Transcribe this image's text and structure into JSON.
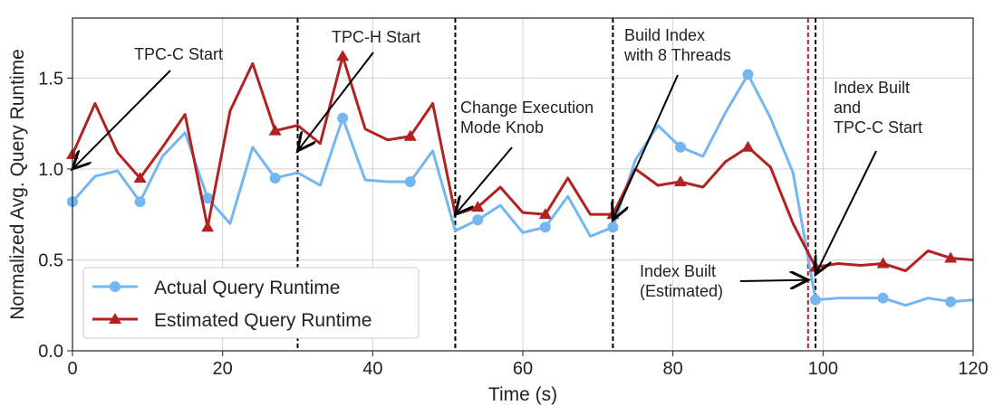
{
  "chart_data": {
    "type": "line",
    "title": "",
    "xlabel": "Time (s)",
    "ylabel": "Normalized Avg. Query Runtime",
    "xlim": [
      0,
      120
    ],
    "ylim": [
      0,
      1.83
    ],
    "xticks": [
      0,
      20,
      40,
      60,
      80,
      100,
      120
    ],
    "yticks": [
      "0.0",
      "0.5",
      "1.0",
      "1.5"
    ],
    "ytick_values": [
      0,
      0.5,
      1.0,
      1.5
    ],
    "grid": true,
    "legend_position": "bottom-left",
    "x": [
      0,
      3,
      6,
      9,
      12,
      15,
      18,
      21,
      24,
      27,
      30,
      33,
      36,
      39,
      42,
      45,
      48,
      51,
      54,
      57,
      60,
      63,
      66,
      69,
      72,
      75,
      78,
      81,
      84,
      87,
      90,
      93,
      96,
      99,
      102,
      105,
      108,
      111,
      114,
      117,
      120
    ],
    "series": [
      {
        "name": "Actual Query Runtime",
        "color": "#74b6f2",
        "marker": "circle",
        "marker_x": [
          0,
          9,
          18,
          27,
          36,
          45,
          54,
          63,
          72,
          81,
          90,
          99,
          108,
          117
        ],
        "values": [
          0.82,
          0.96,
          0.99,
          0.82,
          1.07,
          1.2,
          0.84,
          0.7,
          1.12,
          0.95,
          0.98,
          0.91,
          1.28,
          0.94,
          0.93,
          0.93,
          1.1,
          0.66,
          0.72,
          0.8,
          0.65,
          0.68,
          0.85,
          0.63,
          0.68,
          1.05,
          1.24,
          1.12,
          1.07,
          1.31,
          1.52,
          1.28,
          0.98,
          0.28,
          0.29,
          0.29,
          0.29,
          0.25,
          0.29,
          0.27,
          0.28
        ]
      },
      {
        "name": "Estimated Query Runtime",
        "color": "#b22222",
        "marker": "triangle",
        "marker_x": [
          0,
          9,
          18,
          27,
          36,
          45,
          54,
          63,
          72,
          81,
          90,
          99,
          108,
          117
        ],
        "values": [
          1.08,
          1.36,
          1.09,
          0.95,
          1.12,
          1.3,
          0.68,
          1.32,
          1.58,
          1.21,
          1.24,
          1.14,
          1.62,
          1.22,
          1.16,
          1.18,
          1.36,
          0.75,
          0.79,
          0.9,
          0.76,
          0.75,
          0.95,
          0.75,
          0.75,
          1.0,
          0.91,
          0.93,
          0.9,
          1.04,
          1.12,
          1.01,
          0.7,
          0.46,
          0.48,
          0.47,
          0.48,
          0.44,
          0.55,
          0.51,
          0.5
        ]
      }
    ],
    "vlines": [
      {
        "x": 30,
        "color": "#000000"
      },
      {
        "x": 51,
        "color": "#000000"
      },
      {
        "x": 72,
        "color": "#000000"
      },
      {
        "x": 98,
        "color": "#b22222"
      },
      {
        "x": 99,
        "color": "#000000"
      }
    ],
    "annotations": [
      {
        "lines": [
          "TPC-C Start"
        ],
        "target": [
          0,
          1.0
        ]
      },
      {
        "lines": [
          "TPC-H Start"
        ],
        "target": [
          30,
          1.1
        ]
      },
      {
        "lines": [
          "Change Execution",
          "Mode Knob"
        ],
        "target": [
          51,
          0.75
        ]
      },
      {
        "lines": [
          "Build Index",
          "with 8 Threads"
        ],
        "target": [
          72,
          0.72
        ]
      },
      {
        "lines": [
          "Index Built",
          "and",
          "TPC-C Start"
        ],
        "target": [
          99,
          0.42
        ]
      },
      {
        "lines": [
          "Index Built",
          "(Estimated)"
        ],
        "target": [
          98,
          0.39
        ]
      }
    ]
  }
}
